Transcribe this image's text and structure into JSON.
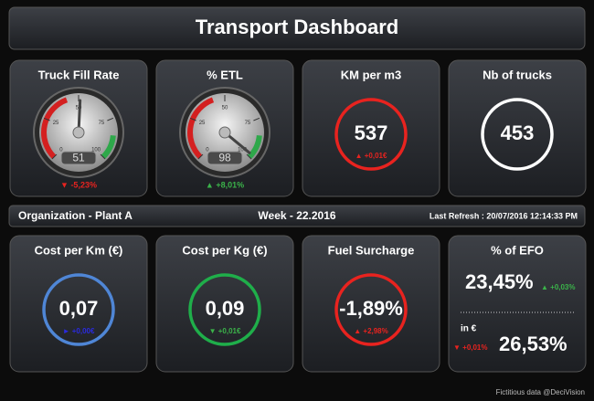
{
  "header": {
    "title": "Transport Dashboard"
  },
  "kpis_top": [
    {
      "title": "Truck Fill Rate",
      "type": "gauge",
      "value": 51,
      "range": [
        0,
        100
      ],
      "ticks": [
        0,
        25,
        50,
        75,
        100
      ],
      "delta": "▼ -5,23%",
      "delta_color": "#e8231f"
    },
    {
      "title": "% ETL",
      "type": "gauge",
      "value": 98,
      "range": [
        0,
        100
      ],
      "ticks": [
        0,
        25,
        50,
        75,
        100
      ],
      "delta": "▲ +8,01%",
      "delta_color": "#3bb34a"
    },
    {
      "title": "KM per m3",
      "type": "circle",
      "value": "537",
      "ring_color": "#e8231f",
      "delta": "▲ +0,01€",
      "delta_color": "#e8231f"
    },
    {
      "title": "Nb of trucks",
      "type": "circle",
      "value": "453",
      "ring_color": "#ffffff"
    }
  ],
  "info_bar": {
    "organization": "Organization - Plant A",
    "week": "Week - 22.2016",
    "refresh": "Last Refresh : 20/07/2016 12:14:33 PM"
  },
  "kpis_bottom": [
    {
      "title": "Cost per Km (€)",
      "type": "circle",
      "value": "0,07",
      "ring_color": "#4f86d6",
      "delta": "► +0,00€",
      "delta_color": "#2a2ae0"
    },
    {
      "title": "Cost per Kg (€)",
      "type": "circle",
      "value": "0,09",
      "ring_color": "#1fae4a",
      "delta": "▼ +0,01€",
      "delta_color": "#3bb34a"
    },
    {
      "title": "Fuel Surcharge",
      "type": "circle",
      "value": "-1,89%",
      "ring_color": "#e8231f",
      "delta": "▲ +2,98%",
      "delta_color": "#e8231f"
    },
    {
      "title": "% of EFO",
      "type": "split",
      "value": "23,45%",
      "delta": "▲ +0,03%",
      "delta_color": "#3bb34a",
      "sub_label": "in €",
      "value2": "26,53%",
      "delta2": "▼ +0,01%",
      "delta2_color": "#e8231f"
    }
  ],
  "footer": "Fictitious data @DeciVision"
}
